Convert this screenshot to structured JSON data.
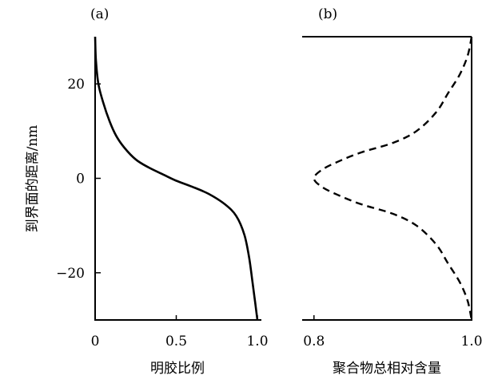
{
  "chart_data": [
    {
      "type": "line",
      "panel_label": "(a)",
      "xlabel": "明胶比例",
      "ylabel": "到界面的距离/nm",
      "xlim": [
        0,
        1.0
      ],
      "ylim": [
        -30,
        30
      ],
      "x_ticks": [
        0,
        0.5,
        1.0
      ],
      "x_tick_labels": [
        "0",
        "0.5",
        "1.0"
      ],
      "y_ticks": [
        20,
        0,
        -20
      ],
      "y_tick_labels": [
        "20",
        "0",
        "−20"
      ],
      "series": [
        {
          "style": "solid",
          "points": [
            [
              0.0,
              30
            ],
            [
              0.005,
              25
            ],
            [
              0.02,
              20
            ],
            [
              0.05,
              16
            ],
            [
              0.09,
              12
            ],
            [
              0.13,
              9
            ],
            [
              0.18,
              6.5
            ],
            [
              0.25,
              4
            ],
            [
              0.33,
              2.3
            ],
            [
              0.42,
              0.8
            ],
            [
              0.5,
              -0.5
            ],
            [
              0.6,
              -1.8
            ],
            [
              0.7,
              -3.3
            ],
            [
              0.8,
              -5.5
            ],
            [
              0.87,
              -8
            ],
            [
              0.92,
              -12
            ],
            [
              0.95,
              -17
            ],
            [
              0.97,
              -22
            ],
            [
              0.985,
              -26
            ],
            [
              1.0,
              -30
            ]
          ]
        }
      ]
    },
    {
      "type": "line",
      "panel_label": "(b)",
      "xlabel": "聚合物总相对含量",
      "xlim": [
        0.785,
        1.0
      ],
      "ylim": [
        -30,
        30
      ],
      "x_ticks": [
        0.8,
        1.0
      ],
      "x_tick_labels": [
        "0.8",
        "1.0"
      ],
      "series": [
        {
          "style": "dashed",
          "points": [
            [
              1.0,
              30
            ],
            [
              0.995,
              26
            ],
            [
              0.985,
              22
            ],
            [
              0.97,
              18
            ],
            [
              0.955,
              14
            ],
            [
              0.93,
              10
            ],
            [
              0.9,
              7.5
            ],
            [
              0.86,
              5.5
            ],
            [
              0.83,
              3.5
            ],
            [
              0.81,
              1.8
            ],
            [
              0.8,
              0
            ],
            [
              0.81,
              -1.8
            ],
            [
              0.83,
              -3.5
            ],
            [
              0.86,
              -5.5
            ],
            [
              0.9,
              -7.5
            ],
            [
              0.93,
              -10
            ],
            [
              0.955,
              -14
            ],
            [
              0.97,
              -18
            ],
            [
              0.985,
              -22
            ],
            [
              0.995,
              -26
            ],
            [
              1.0,
              -30
            ]
          ]
        }
      ]
    }
  ]
}
